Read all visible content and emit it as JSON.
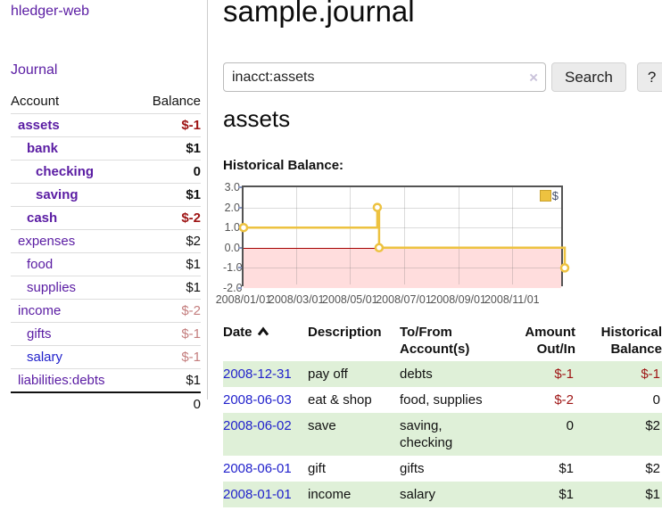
{
  "brand": "hledger-web",
  "nav": {
    "journal": "Journal"
  },
  "sidebar": {
    "headers": {
      "account": "Account",
      "balance": "Balance"
    },
    "accounts": [
      {
        "name": "assets",
        "indent": 0,
        "bold": true,
        "balance": "$-1",
        "balance_tone": "neg"
      },
      {
        "name": "bank",
        "indent": 1,
        "bold": true,
        "balance": "$1",
        "balance_tone": ""
      },
      {
        "name": "checking",
        "indent": 2,
        "bold": true,
        "balance": "0",
        "balance_tone": ""
      },
      {
        "name": "saving",
        "indent": 2,
        "bold": true,
        "balance": "$1",
        "balance_tone": ""
      },
      {
        "name": "cash",
        "indent": 1,
        "bold": true,
        "balance": "$-2",
        "balance_tone": "neg"
      },
      {
        "name": "expenses",
        "indent": 0,
        "bold": false,
        "balance": "$2",
        "balance_tone": ""
      },
      {
        "name": "food",
        "indent": 1,
        "bold": false,
        "balance": "$1",
        "balance_tone": ""
      },
      {
        "name": "supplies",
        "indent": 1,
        "bold": false,
        "balance": "$1",
        "balance_tone": ""
      },
      {
        "name": "income",
        "indent": 0,
        "bold": false,
        "balance": "$-2",
        "balance_tone": "neg-light"
      },
      {
        "name": "gifts",
        "indent": 1,
        "bold": false,
        "balance": "$-1",
        "balance_tone": "neg-light"
      },
      {
        "name": "salary",
        "indent": 1,
        "bold": false,
        "balance": "$-1",
        "balance_tone": "neg-light",
        "link": "blue"
      },
      {
        "name": "liabilities:debts",
        "indent": 0,
        "bold": false,
        "balance": "$1",
        "balance_tone": ""
      }
    ],
    "total": "0"
  },
  "header": {
    "title": "sample.journal"
  },
  "search": {
    "value": "inacct:assets",
    "clear_icon": "×",
    "button": "Search",
    "help_button": "?"
  },
  "account_page": {
    "heading": "assets",
    "chart_label": "Historical Balance:"
  },
  "chart_data": {
    "type": "line",
    "step": true,
    "title": "Historical Balance:",
    "legend": {
      "label": "$",
      "position": "top-right"
    },
    "xlim": [
      "2008-01-01",
      "2008-12-31"
    ],
    "ylim": [
      -2,
      3
    ],
    "y_ticks": [
      "3.0",
      "2.0",
      "1.0",
      "0.0",
      "-1.0",
      "-2.0"
    ],
    "x_ticks": [
      "2008/01/01",
      "2008/03/01",
      "2008/05/01",
      "2008/07/01",
      "2008/09/01",
      "2008/11/01"
    ],
    "series": [
      {
        "name": "$",
        "color": "#edc240",
        "points": [
          [
            "2008-01-01",
            1
          ],
          [
            "2008-06-01",
            2
          ],
          [
            "2008-06-03",
            0
          ],
          [
            "2008-12-31",
            -1
          ]
        ]
      }
    ],
    "negative_region": true,
    "grid": true
  },
  "register": {
    "headers": {
      "date": "Date",
      "description": "Description",
      "accounts": "To/From Account(s)",
      "amount": "Amount Out/In",
      "balance": "Historical Balance"
    },
    "rows": [
      {
        "date": "2008-12-31",
        "description": "pay off",
        "accounts": "debts",
        "amount": "$-1",
        "amount_negative": true,
        "balance": "$-1",
        "balance_negative": true
      },
      {
        "date": "2008-06-03",
        "description": "eat & shop",
        "accounts": "food, supplies",
        "amount": "$-2",
        "amount_negative": true,
        "balance": "0",
        "balance_negative": false
      },
      {
        "date": "2008-06-02",
        "description": "save",
        "accounts": "saving, checking",
        "amount": "0",
        "amount_negative": false,
        "balance": "$2",
        "balance_negative": false
      },
      {
        "date": "2008-06-01",
        "description": "gift",
        "accounts": "gifts",
        "amount": "$1",
        "amount_negative": false,
        "balance": "$2",
        "balance_negative": false
      },
      {
        "date": "2008-01-01",
        "description": "income",
        "accounts": "salary",
        "amount": "$1",
        "amount_negative": false,
        "balance": "$1",
        "balance_negative": false
      }
    ]
  },
  "colors": {
    "link_purple": "#5a1ca3",
    "link_blue": "#2222cc",
    "negative_strong": "#9e1414",
    "negative_light": "#c47e7e",
    "date_link": "#2222cc",
    "row_stripe": "#dff0d8",
    "series_gold": "#edc240",
    "legend_swatch_border": "#c9a22e",
    "negative_region_pink": "#ffdddd",
    "zero_line_red": "#a40000",
    "plot_border": "#545454",
    "axis_text": "#545454"
  }
}
